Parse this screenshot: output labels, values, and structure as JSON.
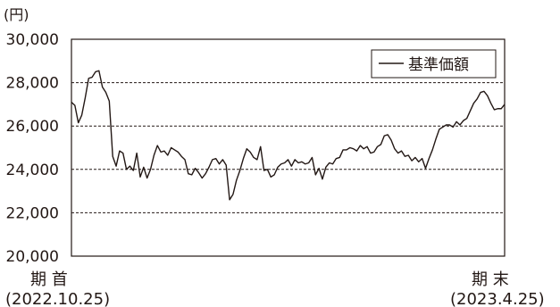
{
  "chart_data": {
    "type": "line",
    "unit_label": "(円)",
    "yticks": [
      "30,000",
      "28,000",
      "26,000",
      "24,000",
      "22,000",
      "20,000"
    ],
    "ylim": [
      20000,
      30000
    ],
    "grid": "dashed horizontal lines at 22,000 / 24,000 / 26,000 / 28,000",
    "legend_placement": "top-right",
    "colors": {
      "line": "#231815",
      "grid": "#231815",
      "background": "#ffffff"
    },
    "x_start": {
      "label": "期 首",
      "date": "(2022.10.25)"
    },
    "x_end": {
      "label": "期 末",
      "date": "(2023.4.25)"
    },
    "series": [
      {
        "name": "基準価額",
        "values": [
          27100,
          26950,
          26150,
          26500,
          27300,
          28200,
          28250,
          28500,
          28550,
          27800,
          27550,
          27150,
          24600,
          24150,
          24850,
          24750,
          24000,
          24150,
          23950,
          24750,
          23650,
          24100,
          23600,
          24000,
          24650,
          25100,
          24800,
          24850,
          24650,
          25000,
          24900,
          24800,
          24600,
          24450,
          23800,
          23750,
          24050,
          23850,
          23600,
          23800,
          24100,
          24450,
          24500,
          24250,
          24450,
          24200,
          22600,
          22850,
          23500,
          23950,
          24500,
          24950,
          24800,
          24550,
          24450,
          25050,
          23950,
          24000,
          23650,
          23750,
          24100,
          24250,
          24300,
          24450,
          24150,
          24450,
          24300,
          24350,
          24250,
          24300,
          24550,
          23750,
          24050,
          23550,
          24100,
          24300,
          24250,
          24500,
          24550,
          24900,
          24900,
          25000,
          24950,
          24850,
          25100,
          24950,
          25050,
          24750,
          24800,
          25050,
          25150,
          25550,
          25600,
          25350,
          24950,
          24750,
          24850,
          24600,
          24650,
          24400,
          24550,
          24350,
          24500,
          24050,
          24500,
          24900,
          25400,
          25850,
          25950,
          26050,
          26050,
          25950,
          26200,
          26050,
          26250,
          26350,
          26700,
          27050,
          27250,
          27550,
          27600,
          27400,
          27050,
          26750,
          26800,
          26800,
          27000
        ]
      }
    ]
  }
}
